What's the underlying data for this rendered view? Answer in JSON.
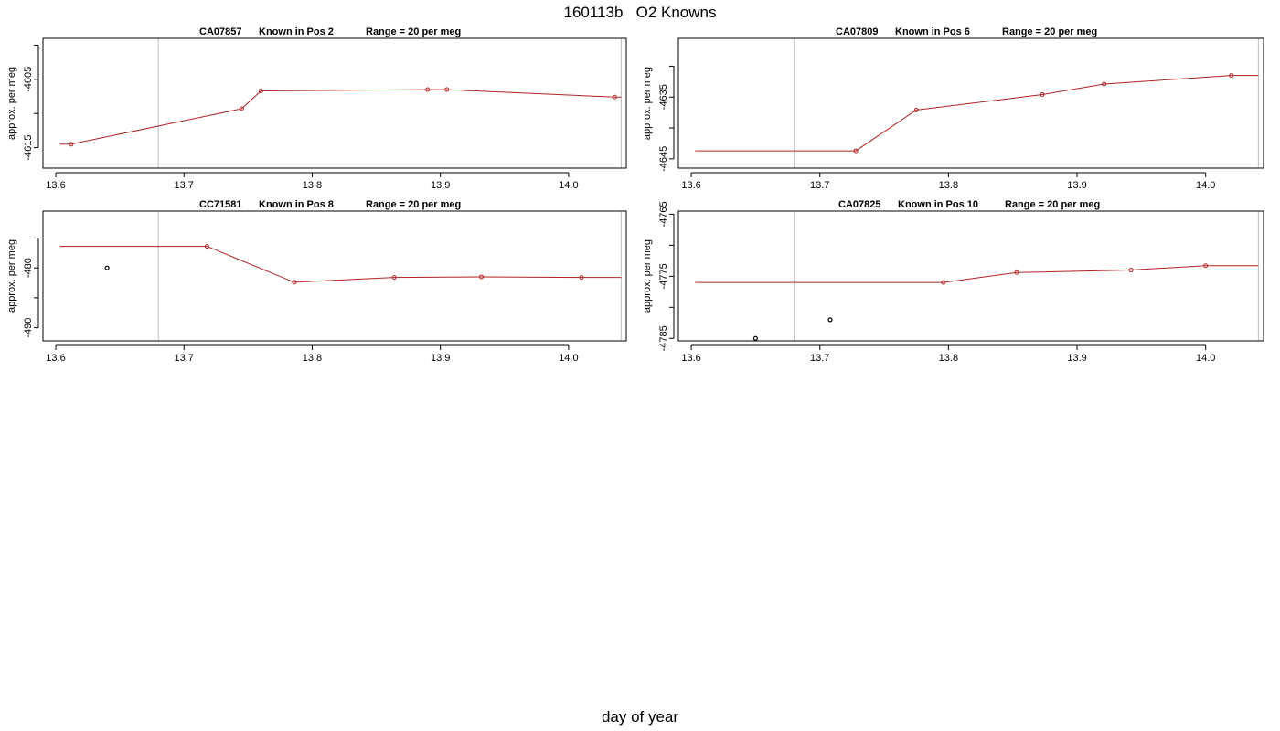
{
  "title": "160113b   O2 Knowns",
  "xlabel": "day of year",
  "colors": {
    "line": "#b22222",
    "point_alt": "#000000",
    "vline": "#bebebe",
    "axis": "#000000"
  },
  "chart_data": [
    {
      "type": "line",
      "panel_title": [
        "CA07857",
        "Known in Pos 2",
        "Range = 20 per meg"
      ],
      "ylabel": "approx. per meg",
      "xlim": [
        13.59,
        14.045
      ],
      "ylim": [
        -4618,
        -4599
      ],
      "xticks": [
        13.6,
        13.7,
        13.8,
        13.9,
        14.0
      ],
      "xtick_labels": [
        "13.6",
        "13.7",
        "13.8",
        "13.9",
        "14.0"
      ],
      "yticks": [
        -4615,
        -4610,
        -4605,
        -4600
      ],
      "ytick_labels": [
        "-4615",
        "",
        "-4605",
        ""
      ],
      "vlines": [
        13.68,
        14.041
      ],
      "line": {
        "x": [
          13.603,
          13.612,
          13.745,
          13.76,
          13.89,
          13.905,
          14.036,
          14.041
        ],
        "y": [
          -4614.5,
          -4614.5,
          -4609.3,
          -4606.7,
          -4606.5,
          -4606.5,
          -4607.6,
          -4607.6
        ]
      },
      "points": {
        "x": [
          13.612,
          13.745,
          13.76,
          13.89,
          13.905,
          14.036
        ],
        "y": [
          -4614.5,
          -4609.3,
          -4606.7,
          -4606.5,
          -4606.5,
          -4607.6
        ]
      },
      "outliers": {
        "x": [],
        "y": []
      }
    },
    {
      "type": "line",
      "panel_title": [
        "CA07809",
        "Known in Pos 6",
        "Range = 20 per meg"
      ],
      "ylabel": "approx. per meg",
      "xlim": [
        13.59,
        14.045
      ],
      "ylim": [
        -4646.5,
        -4625.5
      ],
      "xticks": [
        13.6,
        13.7,
        13.8,
        13.9,
        14.0
      ],
      "xtick_labels": [
        "13.6",
        "13.7",
        "13.8",
        "13.9",
        "14.0"
      ],
      "yticks": [
        -4645,
        -4640,
        -4635,
        -4630
      ],
      "ytick_labels": [
        "-4645",
        "",
        "-4635",
        ""
      ],
      "vlines": [
        13.68,
        14.041
      ],
      "line": {
        "x": [
          13.603,
          13.728,
          13.775,
          13.873,
          13.921,
          14.02,
          14.041
        ],
        "y": [
          -4643.7,
          -4643.7,
          -4637.1,
          -4634.6,
          -4632.9,
          -4631.5,
          -4631.5
        ]
      },
      "points": {
        "x": [
          13.728,
          13.775,
          13.873,
          13.921,
          14.02
        ],
        "y": [
          -4643.7,
          -4637.1,
          -4634.6,
          -4632.9,
          -4631.5
        ]
      },
      "outliers": {
        "x": [],
        "y": []
      }
    },
    {
      "type": "line",
      "panel_title": [
        "CC71581",
        "Known in Pos 8",
        "Range = 20 per meg"
      ],
      "ylabel": "approx. per meg",
      "xlim": [
        13.59,
        14.045
      ],
      "ylim": [
        -492.2,
        -470.5
      ],
      "xticks": [
        13.6,
        13.7,
        13.8,
        13.9,
        14.0
      ],
      "xtick_labels": [
        "13.6",
        "13.7",
        "13.8",
        "13.9",
        "14.0"
      ],
      "yticks": [
        -490,
        -485,
        -480,
        -475
      ],
      "ytick_labels": [
        "-490",
        "",
        "-480",
        ""
      ],
      "vlines": [
        13.68,
        14.041
      ],
      "line": {
        "x": [
          13.603,
          13.718,
          13.786,
          13.864,
          13.932,
          14.01,
          14.041
        ],
        "y": [
          -476.4,
          -476.4,
          -482.4,
          -481.6,
          -481.5,
          -481.6,
          -481.6
        ]
      },
      "points": {
        "x": [
          13.718,
          13.786,
          13.864,
          13.932,
          14.01
        ],
        "y": [
          -476.4,
          -482.4,
          -481.6,
          -481.5,
          -481.6
        ]
      },
      "outliers": {
        "x": [
          13.64
        ],
        "y": [
          -480.0
        ]
      }
    },
    {
      "type": "line",
      "panel_title": [
        "CA07825",
        "Known in Pos 10",
        "Range = 20 per meg"
      ],
      "ylabel": "approx. per meg",
      "xlim": [
        13.59,
        14.045
      ],
      "ylim": [
        -4785.4,
        -4764.5
      ],
      "xticks": [
        13.6,
        13.7,
        13.8,
        13.9,
        14.0
      ],
      "xtick_labels": [
        "13.6",
        "13.7",
        "13.8",
        "13.9",
        "14.0"
      ],
      "yticks": [
        -4785,
        -4780,
        -4775,
        -4770,
        -4765
      ],
      "ytick_labels": [
        "-4785",
        "",
        "-4775",
        "",
        "-4765"
      ],
      "vlines": [
        13.68,
        14.041
      ],
      "line": {
        "x": [
          13.603,
          13.796,
          13.853,
          13.942,
          14.0,
          14.041
        ],
        "y": [
          -4776.0,
          -4776.0,
          -4774.4,
          -4774.0,
          -4773.3,
          -4773.3
        ]
      },
      "points": {
        "x": [
          13.796,
          13.853,
          13.942,
          14.0
        ],
        "y": [
          -4776.0,
          -4774.4,
          -4774.0,
          -4773.3
        ]
      },
      "outliers": {
        "x": [
          13.65,
          13.708
        ],
        "y": [
          -4785.0,
          -4782.0
        ]
      }
    }
  ]
}
